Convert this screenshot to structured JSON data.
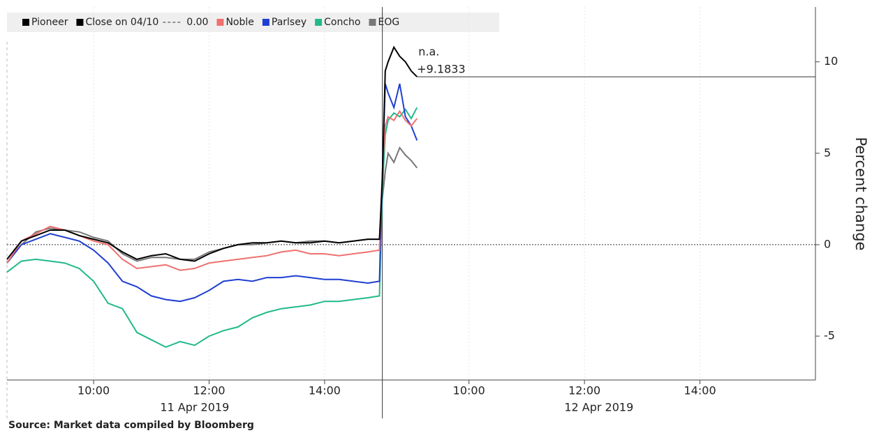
{
  "chart_data": {
    "type": "line",
    "y_label": "Percent change",
    "source": "Source: Market data compiled by Bloomberg",
    "x": [
      8.5,
      8.75,
      9,
      9.25,
      9.5,
      9.75,
      10,
      10.25,
      10.5,
      10.75,
      11,
      11.25,
      11.5,
      11.75,
      12,
      12.25,
      12.5,
      12.75,
      13,
      13.25,
      13.5,
      13.75,
      14,
      14.25,
      14.5,
      14.75,
      14.95,
      15.0,
      15.05,
      15.1,
      15.2,
      15.3,
      15.4,
      15.5,
      15.6
    ],
    "xlim": [
      8.5,
      22.5
    ],
    "xticks": [
      {
        "value": 10,
        "label": "10:00"
      },
      {
        "value": 12,
        "label": "12:00"
      },
      {
        "value": 14,
        "label": "14:00"
      },
      {
        "value": 16.5,
        "label": "10:00"
      },
      {
        "value": 18.5,
        "label": "12:00"
      },
      {
        "value": 20.5,
        "label": "14:00"
      }
    ],
    "sessions": [
      {
        "label": "11 Apr 2019",
        "start": 8.5,
        "end": 15
      },
      {
        "label": "12 Apr 2019",
        "start": 15,
        "end": 22.5
      }
    ],
    "ylim": [
      -7.4,
      13
    ],
    "yticks": [
      -5,
      0,
      5,
      10
    ],
    "grid": true,
    "reference_line": {
      "name": "Close on 04/10",
      "value": 0,
      "value_label": "0.00"
    },
    "annotations": [
      "n.a."
    ],
    "series": [
      {
        "name": "Pioneer",
        "color": "#000000",
        "last_label": "+9.1833",
        "values": [
          -0.8,
          0.2,
          0.5,
          0.8,
          0.8,
          0.5,
          0.3,
          0.1,
          -0.4,
          -0.8,
          -0.6,
          -0.5,
          -0.8,
          -0.9,
          -0.5,
          -0.2,
          0,
          0.1,
          0.1,
          0.2,
          0.1,
          0.1,
          0.2,
          0.1,
          0.2,
          0.3,
          0.3,
          3.5,
          9.5,
          10.0,
          10.8,
          10.3,
          10.0,
          9.5,
          9.1833
        ]
      },
      {
        "name": "Noble",
        "color": "#f07070",
        "values": [
          -1.0,
          0.2,
          0.6,
          1.0,
          0.8,
          0.5,
          0.2,
          0,
          -0.8,
          -1.3,
          -1.2,
          -1.1,
          -1.4,
          -1.3,
          -1.0,
          -0.9,
          -0.8,
          -0.7,
          -0.6,
          -0.4,
          -0.3,
          -0.5,
          -0.5,
          -0.6,
          -0.5,
          -0.4,
          -0.3,
          4.0,
          6.5,
          7.0,
          6.8,
          7.3,
          6.8,
          6.5,
          6.9
        ]
      },
      {
        "name": "Parlsey",
        "color": "#1f3fd1",
        "values": [
          -1.0,
          0,
          0.3,
          0.6,
          0.4,
          0.2,
          -0.3,
          -1.0,
          -2.0,
          -2.3,
          -2.8,
          -3.0,
          -3.1,
          -2.9,
          -2.5,
          -2.0,
          -1.9,
          -2.0,
          -1.8,
          -1.8,
          -1.7,
          -1.8,
          -1.9,
          -1.9,
          -2.0,
          -2.1,
          -2.0,
          3.8,
          8.8,
          8.3,
          7.5,
          8.8,
          7.0,
          6.5,
          5.7
        ]
      },
      {
        "name": "Concho",
        "color": "#21b98b",
        "values": [
          -1.5,
          -0.9,
          -0.8,
          -0.9,
          -1.0,
          -1.3,
          -2.0,
          -3.2,
          -3.5,
          -4.8,
          -5.2,
          -5.6,
          -5.3,
          -5.5,
          -5.0,
          -4.7,
          -4.5,
          -4.0,
          -3.7,
          -3.5,
          -3.4,
          -3.3,
          -3.1,
          -3.1,
          -3.0,
          -2.9,
          -2.8,
          3.0,
          6.0,
          6.8,
          7.2,
          7.0,
          7.4,
          6.9,
          7.5
        ]
      },
      {
        "name": "EOG",
        "color": "#777777",
        "values": [
          -1.0,
          0,
          0.7,
          0.9,
          0.8,
          0.7,
          0.4,
          0.2,
          -0.5,
          -0.9,
          -0.7,
          -0.7,
          -0.8,
          -0.8,
          -0.4,
          -0.2,
          0,
          0,
          0.1,
          0.2,
          0.1,
          0.2,
          0.2,
          0.1,
          0.2,
          0.3,
          0.3,
          2.5,
          4.0,
          5.0,
          4.5,
          5.3,
          4.9,
          4.6,
          4.2
        ]
      }
    ]
  }
}
